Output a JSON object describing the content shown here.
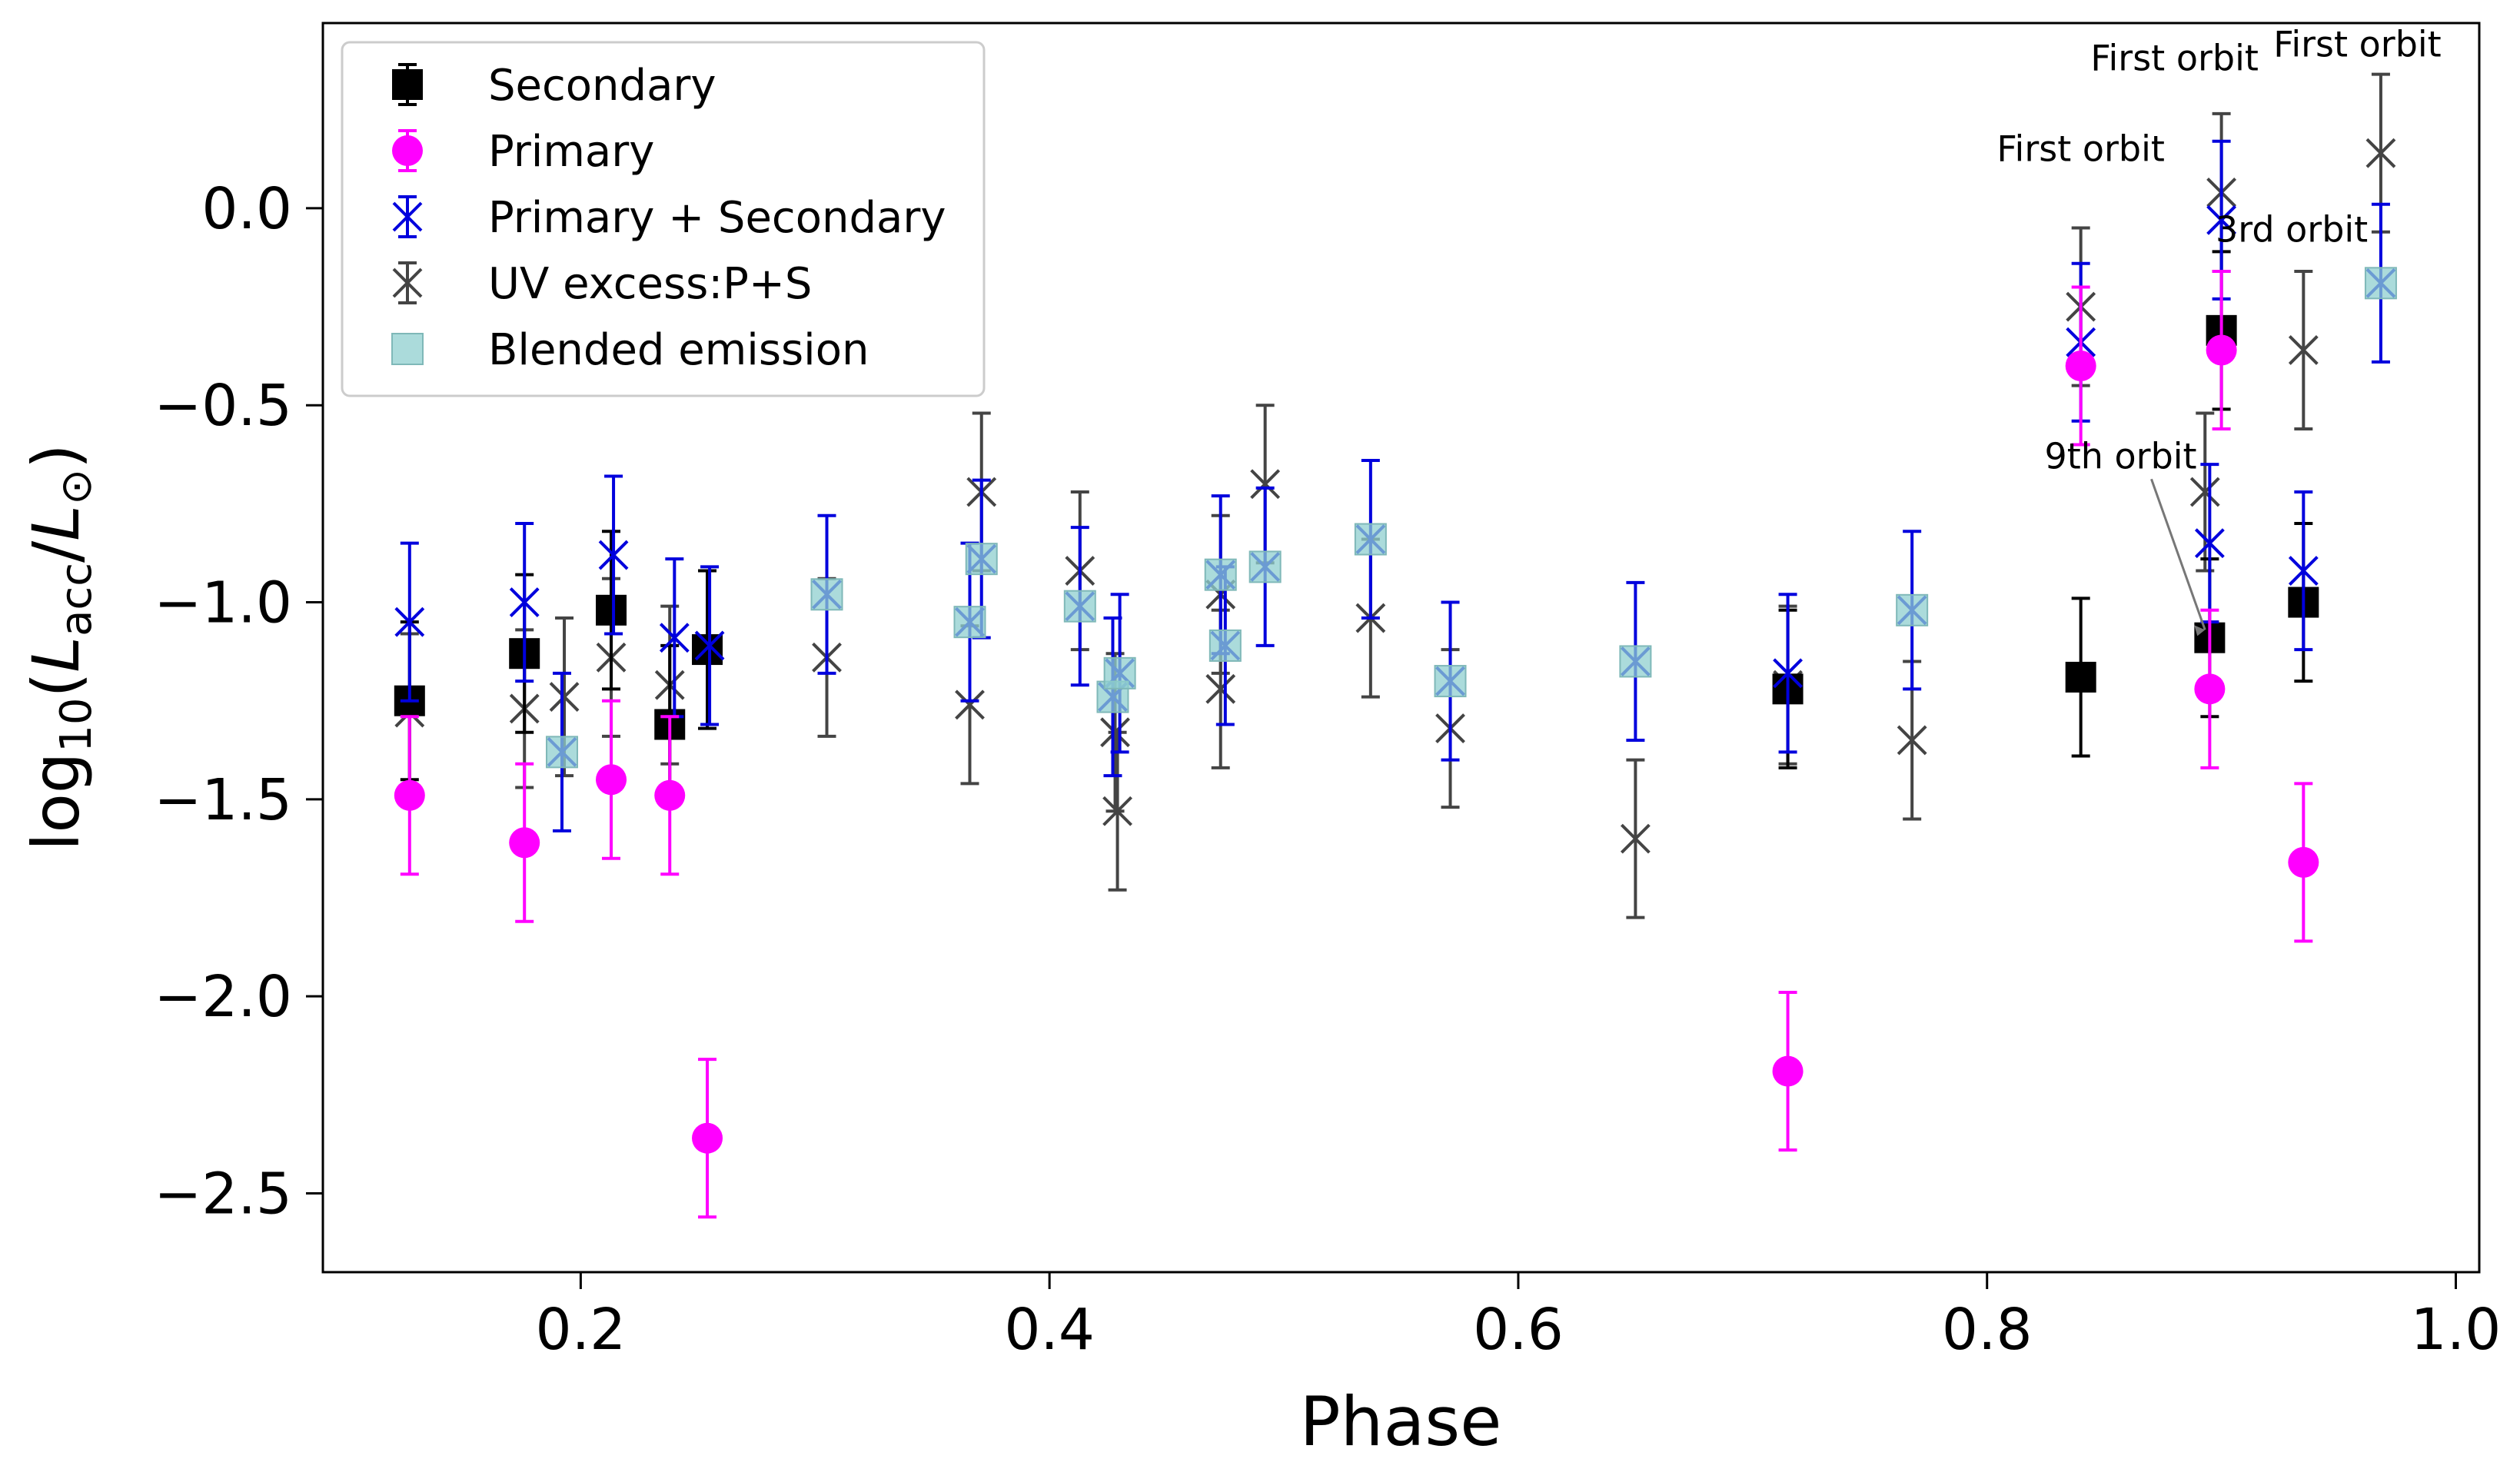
{
  "chart_data": {
    "type": "scatter",
    "title": "",
    "xlabel": "Phase",
    "ylabel_prefix": "log",
    "ylabel_sub": "10",
    "ylabel_open": "(",
    "ylabel_L": "L",
    "ylabel_acc": "acc",
    "ylabel_slash": "/",
    "ylabel_L2": "L",
    "ylabel_sun": "⊙",
    "ylabel_close": ")",
    "xlim": [
      0.09,
      1.01
    ],
    "ylim": [
      -2.7,
      0.47
    ],
    "xticks": [
      0.2,
      0.4,
      0.6,
      0.8,
      1.0
    ],
    "xtick_labels": [
      "0.2",
      "0.4",
      "0.6",
      "0.8",
      "1.0"
    ],
    "yticks": [
      0.0,
      -0.5,
      -1.0,
      -1.5,
      -2.0,
      -2.5
    ],
    "ytick_labels": [
      "0.0",
      "−0.5",
      "−1.0",
      "−1.5",
      "−2.0",
      "−2.5"
    ],
    "legend_position": "upper-left",
    "series": [
      {
        "name": "UV excess:P+S",
        "marker": "x",
        "color": "#444444",
        "err": 0.2,
        "points": [
          [
            0.127,
            -1.28
          ],
          [
            0.176,
            -1.27
          ],
          [
            0.193,
            -1.24
          ],
          [
            0.213,
            -1.14
          ],
          [
            0.238,
            -1.21
          ],
          [
            0.305,
            -1.14
          ],
          [
            0.366,
            -1.26
          ],
          [
            0.371,
            -0.72
          ],
          [
            0.413,
            -0.92
          ],
          [
            0.428,
            -1.33
          ],
          [
            0.429,
            -1.53
          ],
          [
            0.473,
            -1.22
          ],
          [
            0.473,
            -0.98
          ],
          [
            0.492,
            -0.7
          ],
          [
            0.537,
            -1.04
          ],
          [
            0.571,
            -1.32
          ],
          [
            0.65,
            -1.6
          ],
          [
            0.715,
            -1.21
          ],
          [
            0.768,
            -1.35
          ],
          [
            0.84,
            -0.25
          ],
          [
            0.893,
            -0.72
          ],
          [
            0.9,
            0.04
          ],
          [
            0.935,
            -0.36
          ],
          [
            0.968,
            0.14
          ]
        ]
      },
      {
        "name": "Secondary",
        "marker": "square",
        "color": "#000000",
        "err": 0.2,
        "points": [
          [
            0.127,
            -1.25
          ],
          [
            0.176,
            -1.13
          ],
          [
            0.213,
            -1.02
          ],
          [
            0.238,
            -1.31
          ],
          [
            0.254,
            -1.12
          ],
          [
            0.715,
            -1.22
          ],
          [
            0.84,
            -1.19
          ],
          [
            0.895,
            -1.09
          ],
          [
            0.9,
            -0.31
          ],
          [
            0.935,
            -1.0
          ]
        ]
      },
      {
        "name": "Primary + Secondary",
        "marker": "x",
        "color": "#0000dd",
        "err": 0.2,
        "points": [
          [
            0.127,
            -1.05
          ],
          [
            0.176,
            -1.0
          ],
          [
            0.192,
            -1.38
          ],
          [
            0.214,
            -0.88
          ],
          [
            0.24,
            -1.09
          ],
          [
            0.255,
            -1.11
          ],
          [
            0.305,
            -0.98
          ],
          [
            0.366,
            -1.05
          ],
          [
            0.371,
            -0.89
          ],
          [
            0.413,
            -1.01
          ],
          [
            0.427,
            -1.24
          ],
          [
            0.43,
            -1.18
          ],
          [
            0.473,
            -0.93
          ],
          [
            0.475,
            -1.11
          ],
          [
            0.492,
            -0.91
          ],
          [
            0.537,
            -0.84
          ],
          [
            0.571,
            -1.2
          ],
          [
            0.65,
            -1.15
          ],
          [
            0.715,
            -1.18
          ],
          [
            0.768,
            -1.02
          ],
          [
            0.84,
            -0.34
          ],
          [
            0.895,
            -0.85
          ],
          [
            0.9,
            -0.03
          ],
          [
            0.935,
            -0.92
          ],
          [
            0.968,
            -0.19
          ]
        ]
      },
      {
        "name": "Blended emission",
        "marker": "square-light",
        "color": "#8fcfcf",
        "points": [
          [
            0.192,
            -1.38
          ],
          [
            0.305,
            -0.98
          ],
          [
            0.366,
            -1.05
          ],
          [
            0.371,
            -0.89
          ],
          [
            0.413,
            -1.01
          ],
          [
            0.427,
            -1.24
          ],
          [
            0.43,
            -1.18
          ],
          [
            0.473,
            -0.93
          ],
          [
            0.475,
            -1.11
          ],
          [
            0.492,
            -0.91
          ],
          [
            0.537,
            -0.84
          ],
          [
            0.571,
            -1.2
          ],
          [
            0.65,
            -1.15
          ],
          [
            0.768,
            -1.02
          ],
          [
            0.968,
            -0.19
          ]
        ]
      },
      {
        "name": "Primary",
        "marker": "circle",
        "color": "#ff00ff",
        "err": 0.2,
        "points": [
          [
            0.127,
            -1.49
          ],
          [
            0.176,
            -1.61
          ],
          [
            0.213,
            -1.45
          ],
          [
            0.238,
            -1.49
          ],
          [
            0.254,
            -2.36
          ],
          [
            0.715,
            -2.19
          ],
          [
            0.84,
            -0.4
          ],
          [
            0.895,
            -1.22
          ],
          [
            0.9,
            -0.36
          ],
          [
            0.935,
            -1.66
          ]
        ]
      }
    ],
    "legend": [
      {
        "label": "Secondary",
        "marker": "square",
        "color": "#000000"
      },
      {
        "label": "Primary",
        "marker": "circle",
        "color": "#ff00ff"
      },
      {
        "label": "Primary + Secondary",
        "marker": "x",
        "color": "#0000dd"
      },
      {
        "label": "UV excess:P+S",
        "marker": "x",
        "color": "#444444"
      },
      {
        "label": "Blended emission",
        "marker": "square-light",
        "color": "#8fcfcf"
      }
    ],
    "annotations": [
      {
        "text": "First orbit",
        "x": 0.88,
        "y": 0.35
      },
      {
        "text": "First orbit",
        "x": 0.958,
        "y": 0.385
      },
      {
        "text": "First orbit",
        "x": 0.84,
        "y": 0.12
      },
      {
        "text": "3rd orbit",
        "x": 0.93,
        "y": -0.085
      },
      {
        "text": "9th orbit",
        "x": 0.857,
        "y": -0.66,
        "arrow_to": [
          0.893,
          -1.07
        ]
      }
    ]
  }
}
